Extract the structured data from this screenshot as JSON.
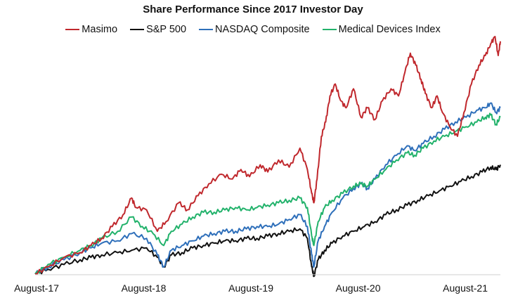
{
  "chart_data": {
    "type": "line",
    "title": "Share Performance Since 2017 Investor Day",
    "xlabel": "",
    "ylabel": "",
    "x_ticks": [
      "August-17",
      "August-18",
      "August-19",
      "August-20",
      "August-21"
    ],
    "x_range": [
      2017.58,
      2021.92
    ],
    "ylim": [
      0,
      100
    ],
    "grid": false,
    "legend_position": "top",
    "series": [
      {
        "name": "Masimo",
        "color": "#c0282d",
        "points": [
          [
            2017.58,
            0
          ],
          [
            2017.7,
            3
          ],
          [
            2017.85,
            7
          ],
          [
            2018.0,
            9
          ],
          [
            2018.1,
            12
          ],
          [
            2018.2,
            15
          ],
          [
            2018.3,
            20
          ],
          [
            2018.4,
            25
          ],
          [
            2018.48,
            32
          ],
          [
            2018.52,
            28
          ],
          [
            2018.62,
            27
          ],
          [
            2018.72,
            18
          ],
          [
            2018.8,
            22
          ],
          [
            2018.92,
            30
          ],
          [
            2019.0,
            27
          ],
          [
            2019.1,
            33
          ],
          [
            2019.2,
            38
          ],
          [
            2019.32,
            42
          ],
          [
            2019.42,
            40
          ],
          [
            2019.5,
            44
          ],
          [
            2019.58,
            41
          ],
          [
            2019.68,
            46
          ],
          [
            2019.75,
            43
          ],
          [
            2019.85,
            48
          ],
          [
            2019.95,
            45
          ],
          [
            2020.05,
            53
          ],
          [
            2020.12,
            44
          ],
          [
            2020.16,
            34
          ],
          [
            2020.18,
            30
          ],
          [
            2020.21,
            40
          ],
          [
            2020.25,
            58
          ],
          [
            2020.29,
            64
          ],
          [
            2020.33,
            75
          ],
          [
            2020.38,
            80
          ],
          [
            2020.43,
            73
          ],
          [
            2020.48,
            70
          ],
          [
            2020.55,
            78
          ],
          [
            2020.62,
            66
          ],
          [
            2020.68,
            70
          ],
          [
            2020.75,
            65
          ],
          [
            2020.82,
            73
          ],
          [
            2020.9,
            78
          ],
          [
            2020.97,
            75
          ],
          [
            2021.03,
            85
          ],
          [
            2021.08,
            93
          ],
          [
            2021.13,
            88
          ],
          [
            2021.18,
            82
          ],
          [
            2021.22,
            76
          ],
          [
            2021.28,
            70
          ],
          [
            2021.33,
            75
          ],
          [
            2021.38,
            68
          ],
          [
            2021.45,
            62
          ],
          [
            2021.52,
            58
          ],
          [
            2021.58,
            68
          ],
          [
            2021.65,
            80
          ],
          [
            2021.72,
            88
          ],
          [
            2021.78,
            92
          ],
          [
            2021.83,
            97
          ],
          [
            2021.87,
            100
          ],
          [
            2021.9,
            92
          ],
          [
            2021.92,
            98
          ]
        ]
      },
      {
        "name": "S&P 500",
        "color": "#111111",
        "points": [
          [
            2017.58,
            0
          ],
          [
            2017.7,
            2
          ],
          [
            2017.85,
            4
          ],
          [
            2018.0,
            6
          ],
          [
            2018.1,
            7
          ],
          [
            2018.2,
            8
          ],
          [
            2018.35,
            9
          ],
          [
            2018.48,
            10
          ],
          [
            2018.62,
            11
          ],
          [
            2018.72,
            7
          ],
          [
            2018.78,
            3
          ],
          [
            2018.85,
            8
          ],
          [
            2018.95,
            9
          ],
          [
            2019.05,
            11
          ],
          [
            2019.15,
            12
          ],
          [
            2019.25,
            13
          ],
          [
            2019.35,
            14
          ],
          [
            2019.45,
            14
          ],
          [
            2019.55,
            15
          ],
          [
            2019.65,
            15
          ],
          [
            2019.75,
            16
          ],
          [
            2019.85,
            17
          ],
          [
            2019.95,
            18
          ],
          [
            2020.05,
            19
          ],
          [
            2020.12,
            15
          ],
          [
            2020.16,
            3
          ],
          [
            2020.18,
            -1
          ],
          [
            2020.22,
            6
          ],
          [
            2020.28,
            10
          ],
          [
            2020.35,
            13
          ],
          [
            2020.45,
            16
          ],
          [
            2020.55,
            18
          ],
          [
            2020.65,
            20
          ],
          [
            2020.75,
            22
          ],
          [
            2020.85,
            25
          ],
          [
            2020.95,
            27
          ],
          [
            2021.05,
            29
          ],
          [
            2021.15,
            31
          ],
          [
            2021.25,
            33
          ],
          [
            2021.35,
            35
          ],
          [
            2021.45,
            37
          ],
          [
            2021.55,
            39
          ],
          [
            2021.65,
            41
          ],
          [
            2021.75,
            43
          ],
          [
            2021.83,
            45
          ],
          [
            2021.88,
            44
          ],
          [
            2021.92,
            46
          ]
        ]
      },
      {
        "name": "NASDAQ Composite",
        "color": "#2e6fba",
        "points": [
          [
            2017.58,
            0
          ],
          [
            2017.7,
            3
          ],
          [
            2017.85,
            6
          ],
          [
            2018.0,
            9
          ],
          [
            2018.1,
            11
          ],
          [
            2018.2,
            13
          ],
          [
            2018.35,
            14
          ],
          [
            2018.48,
            17
          ],
          [
            2018.62,
            15
          ],
          [
            2018.72,
            8
          ],
          [
            2018.78,
            3
          ],
          [
            2018.85,
            10
          ],
          [
            2018.95,
            12
          ],
          [
            2019.05,
            14
          ],
          [
            2019.15,
            16
          ],
          [
            2019.25,
            17
          ],
          [
            2019.35,
            18
          ],
          [
            2019.45,
            18
          ],
          [
            2019.55,
            19
          ],
          [
            2019.65,
            20
          ],
          [
            2019.75,
            20
          ],
          [
            2019.85,
            21
          ],
          [
            2019.95,
            23
          ],
          [
            2020.05,
            25
          ],
          [
            2020.12,
            20
          ],
          [
            2020.16,
            8
          ],
          [
            2020.18,
            3
          ],
          [
            2020.22,
            14
          ],
          [
            2020.28,
            20
          ],
          [
            2020.35,
            26
          ],
          [
            2020.45,
            32
          ],
          [
            2020.55,
            36
          ],
          [
            2020.62,
            38
          ],
          [
            2020.68,
            36
          ],
          [
            2020.75,
            40
          ],
          [
            2020.85,
            46
          ],
          [
            2020.95,
            50
          ],
          [
            2021.05,
            54
          ],
          [
            2021.12,
            52
          ],
          [
            2021.2,
            55
          ],
          [
            2021.3,
            58
          ],
          [
            2021.4,
            61
          ],
          [
            2021.5,
            64
          ],
          [
            2021.6,
            66
          ],
          [
            2021.7,
            69
          ],
          [
            2021.78,
            70
          ],
          [
            2021.83,
            72
          ],
          [
            2021.88,
            68
          ],
          [
            2021.92,
            70
          ]
        ]
      },
      {
        "name": "Medical Devices Index",
        "color": "#22b26b",
        "points": [
          [
            2017.58,
            0
          ],
          [
            2017.7,
            4
          ],
          [
            2017.85,
            7
          ],
          [
            2018.0,
            10
          ],
          [
            2018.1,
            12
          ],
          [
            2018.2,
            15
          ],
          [
            2018.35,
            18
          ],
          [
            2018.48,
            24
          ],
          [
            2018.58,
            20
          ],
          [
            2018.68,
            17
          ],
          [
            2018.78,
            12
          ],
          [
            2018.85,
            18
          ],
          [
            2018.95,
            21
          ],
          [
            2019.05,
            24
          ],
          [
            2019.15,
            26
          ],
          [
            2019.25,
            26
          ],
          [
            2019.35,
            27
          ],
          [
            2019.45,
            28
          ],
          [
            2019.55,
            27
          ],
          [
            2019.65,
            28
          ],
          [
            2019.75,
            29
          ],
          [
            2019.85,
            30
          ],
          [
            2019.95,
            31
          ],
          [
            2020.05,
            32
          ],
          [
            2020.12,
            28
          ],
          [
            2020.16,
            16
          ],
          [
            2020.18,
            12
          ],
          [
            2020.22,
            22
          ],
          [
            2020.28,
            28
          ],
          [
            2020.35,
            31
          ],
          [
            2020.45,
            34
          ],
          [
            2020.55,
            37
          ],
          [
            2020.62,
            38
          ],
          [
            2020.68,
            37
          ],
          [
            2020.75,
            40
          ],
          [
            2020.85,
            44
          ],
          [
            2020.95,
            48
          ],
          [
            2021.05,
            51
          ],
          [
            2021.12,
            50
          ],
          [
            2021.2,
            53
          ],
          [
            2021.3,
            56
          ],
          [
            2021.4,
            58
          ],
          [
            2021.5,
            60
          ],
          [
            2021.6,
            62
          ],
          [
            2021.7,
            64
          ],
          [
            2021.78,
            66
          ],
          [
            2021.83,
            67
          ],
          [
            2021.88,
            63
          ],
          [
            2021.92,
            66
          ]
        ]
      }
    ]
  }
}
